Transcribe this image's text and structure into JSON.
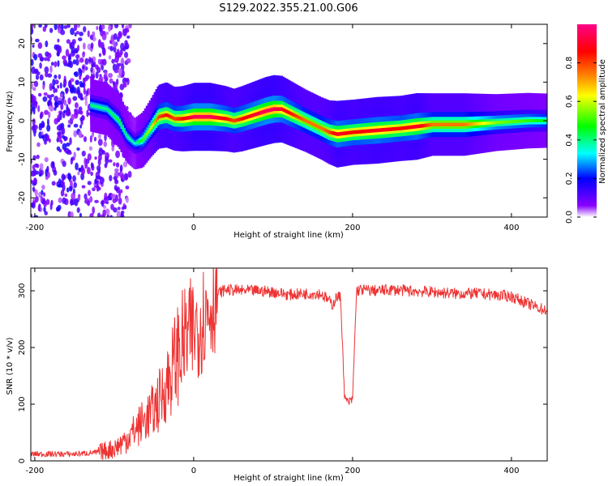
{
  "title": "S129.2022.355.21.00.G06",
  "chart_data": [
    {
      "type": "heatmap",
      "xlabel": "Height of straight line (km)",
      "ylabel": "Frequency (Hz)",
      "xlim": [
        -205,
        445
      ],
      "ylim": [
        -25,
        25
      ],
      "x_ticks": [
        "-200",
        "0",
        "200",
        "400"
      ],
      "y_ticks": [
        "-20",
        "-10",
        "0",
        "10",
        "20"
      ],
      "colorbar": {
        "label": "Normalized spectral amplitude",
        "range": [
          0,
          1
        ],
        "ticks": [
          "0.0",
          "0.2",
          "0.4",
          "0.6",
          "0.8"
        ],
        "colors": [
          "#ffffff",
          "#8800ff",
          "#0000ff",
          "#00ffff",
          "#00ff00",
          "#ffff00",
          "#ff8800",
          "#ff0000",
          "#ff0088"
        ]
      },
      "ridge": {
        "x": [
          -130,
          -110,
          -95,
          -85,
          -75,
          -65,
          -55,
          -45,
          -35,
          -25,
          -15,
          0,
          20,
          40,
          50,
          60,
          75,
          90,
          100,
          110,
          120,
          130,
          140,
          150,
          160,
          170,
          180,
          200,
          230,
          260,
          280,
          300,
          340,
          380,
          420,
          445
        ],
        "y": [
          4,
          3,
          0,
          -4,
          -6,
          -5,
          -2,
          1,
          1.5,
          0.5,
          0.5,
          1,
          1,
          0.5,
          0,
          0.5,
          1.5,
          2.5,
          3,
          3,
          2,
          1,
          0,
          -1,
          -2,
          -3,
          -3.5,
          -3,
          -2.5,
          -2,
          -1.5,
          -1,
          -1,
          -0.5,
          0,
          0
        ],
        "amplitude": [
          0.4,
          0.4,
          0.45,
          0.4,
          0.35,
          0.5,
          0.6,
          0.8,
          0.85,
          0.8,
          0.85,
          0.95,
          0.95,
          0.85,
          0.8,
          0.85,
          0.9,
          0.95,
          0.95,
          0.9,
          0.85,
          0.8,
          0.75,
          0.75,
          0.75,
          0.8,
          0.9,
          0.85,
          0.9,
          0.85,
          0.9,
          0.75,
          0.75,
          0.55,
          0.5,
          0.45
        ]
      }
    },
    {
      "type": "line",
      "xlabel": "Height of straight line (km)",
      "ylabel": "SNR (10 * v/v)",
      "xlim": [
        -205,
        445
      ],
      "ylim": [
        0,
        340
      ],
      "x_ticks": [
        "-200",
        "0",
        "200",
        "400"
      ],
      "y_ticks": [
        "0",
        "100",
        "200",
        "300"
      ],
      "color": "#ee3333",
      "series": [
        {
          "x": [
            -205,
            -150,
            -120,
            -100,
            -90,
            -80,
            -70,
            -60,
            -50,
            -40,
            -30,
            -20,
            -10,
            0,
            10,
            20,
            30,
            40,
            60,
            80,
            100,
            120,
            140,
            160,
            170,
            175,
            180,
            185,
            190,
            195,
            200,
            205,
            210,
            230,
            250,
            270,
            300,
            330,
            360,
            400,
            430,
            445
          ],
          "y": [
            12,
            12,
            15,
            22,
            32,
            45,
            60,
            75,
            90,
            115,
            150,
            190,
            215,
            230,
            250,
            270,
            295,
            302,
            300,
            300,
            298,
            293,
            295,
            295,
            283,
            275,
            290,
            288,
            110,
            103,
            108,
            300,
            302,
            300,
            302,
            300,
            298,
            295,
            295,
            290,
            272,
            265
          ]
        }
      ]
    }
  ]
}
